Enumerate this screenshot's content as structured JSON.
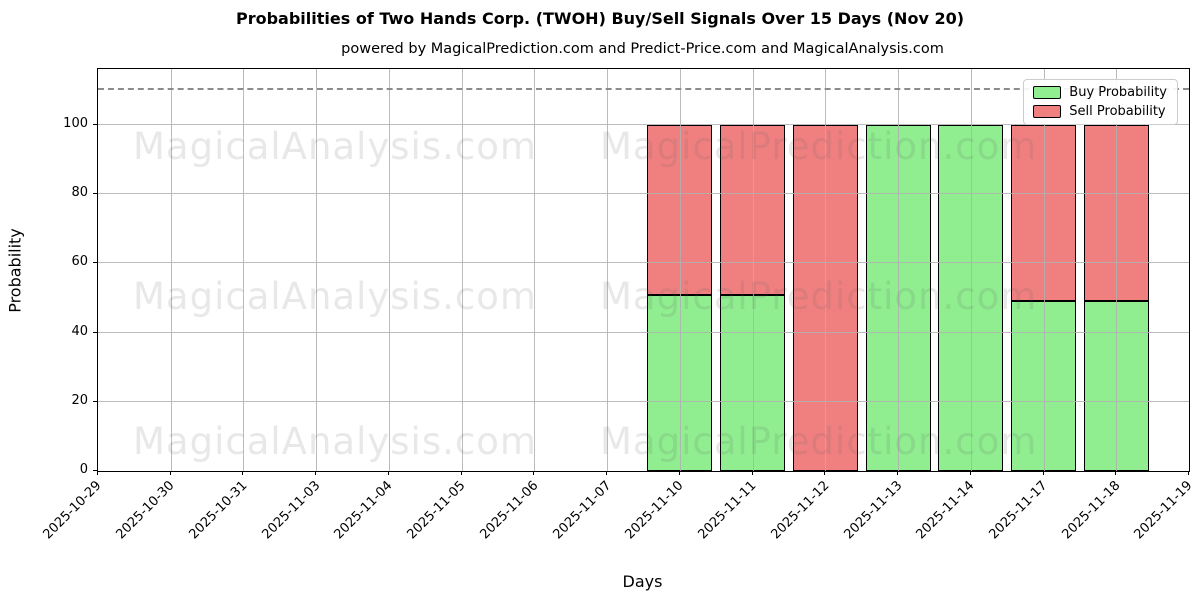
{
  "header": {
    "title": "Probabilities of Two Hands Corp. (TWOH) Buy/Sell Signals Over 15 Days (Nov 20)",
    "subtitle": "powered by MagicalPrediction.com and Predict-Price.com and MagicalAnalysis.com"
  },
  "watermarks": {
    "left_text": "MagicalAnalysis.com",
    "right_text": "MagicalPrediction.com"
  },
  "chart_data": {
    "type": "bar",
    "stacked": true,
    "title": "Probabilities of Two Hands Corp. (TWOH) Buy/Sell Signals Over 15 Days (Nov 20)",
    "xlabel": "Days",
    "ylabel": "Probability",
    "categories": [
      "2025-10-29",
      "2025-10-30",
      "2025-10-31",
      "2025-11-03",
      "2025-11-04",
      "2025-11-05",
      "2025-11-06",
      "2025-11-07",
      "2025-11-10",
      "2025-11-11",
      "2025-11-12",
      "2025-11-13",
      "2025-11-14",
      "2025-11-17",
      "2025-11-18",
      "2025-11-19"
    ],
    "series": [
      {
        "name": "Buy Probability",
        "color": "#90ee90",
        "values": [
          0,
          0,
          0,
          0,
          0,
          0,
          0,
          0,
          51,
          51,
          0,
          100,
          100,
          49,
          49,
          0
        ]
      },
      {
        "name": "Sell Probability",
        "color": "#f08080",
        "values": [
          0,
          0,
          0,
          0,
          0,
          0,
          0,
          0,
          49,
          49,
          100,
          0,
          0,
          51,
          51,
          0
        ]
      }
    ],
    "yticks": [
      0,
      20,
      40,
      60,
      80,
      100
    ],
    "ylim": [
      0,
      116.2
    ],
    "bar_width_ratio": 0.9,
    "edge_color": "#000000",
    "grid": true,
    "grid_color": "#b0b0b0",
    "threshold_line": {
      "value": 110,
      "style": "dashed",
      "color": "#8c8c8c"
    },
    "legend": {
      "position": "upper-right",
      "entries": [
        {
          "label": "Buy Probability",
          "color": "#90ee90"
        },
        {
          "label": "Sell Probability",
          "color": "#f08080"
        }
      ]
    }
  }
}
